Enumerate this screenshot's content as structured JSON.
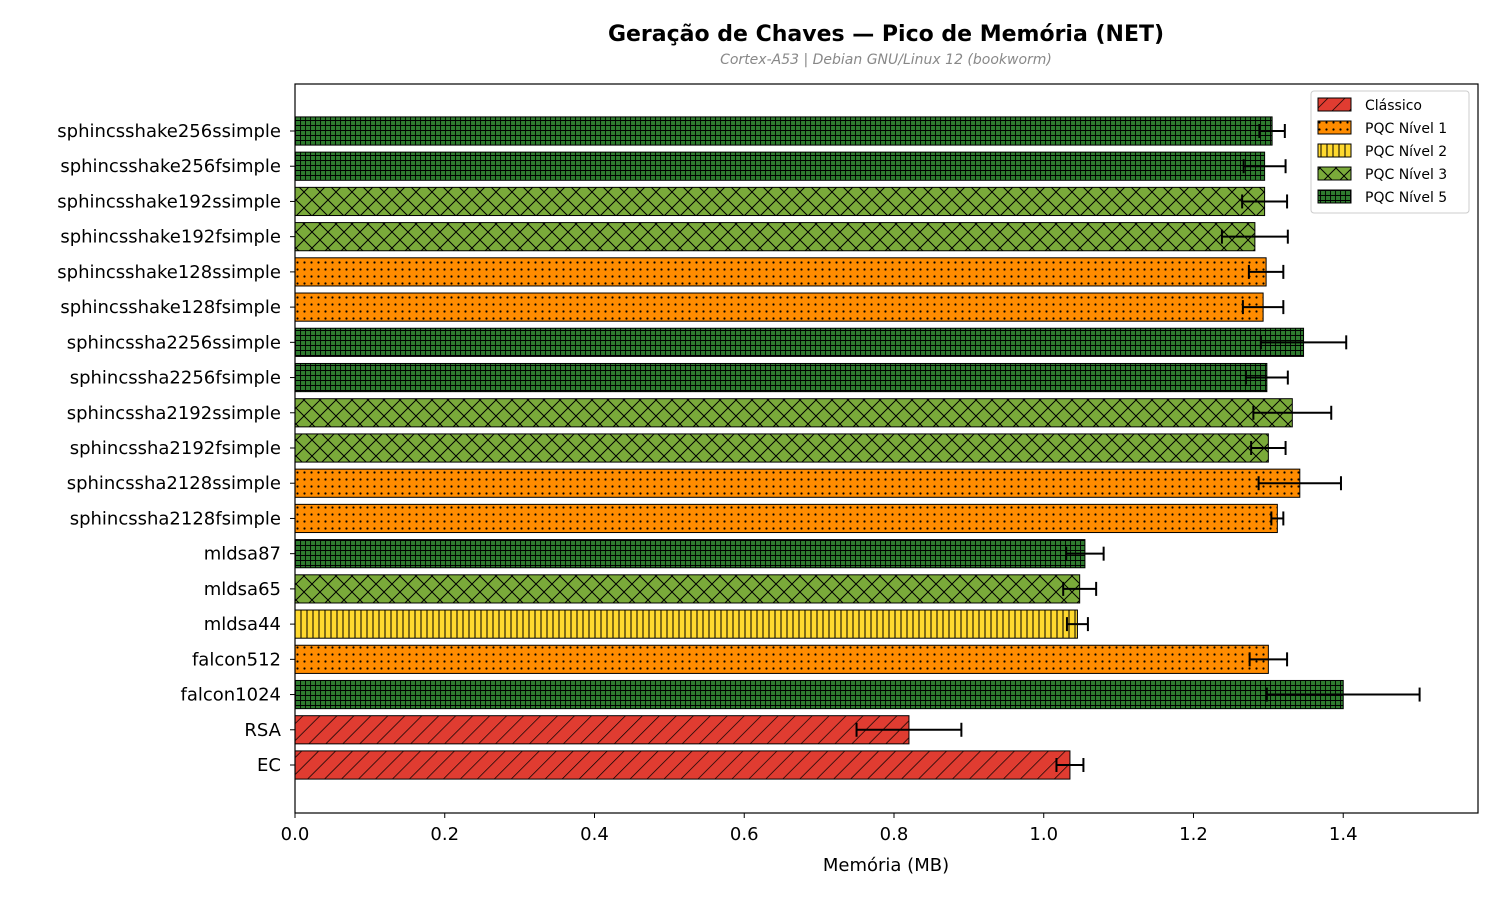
{
  "chart_data": {
    "type": "bar",
    "orientation": "horizontal",
    "title": "Geração de Chaves — Pico de Memória (NET)",
    "subtitle": "Cortex-A53 | Debian GNU/Linux 12 (bookworm)",
    "xlabel": "Memória (MB)",
    "ylabel": "",
    "xlim": [
      0,
      1.58
    ],
    "xticks": [
      "0.0",
      "0.2",
      "0.4",
      "0.6",
      "0.8",
      "1.0",
      "1.2",
      "1.4"
    ],
    "grid": false,
    "legend_position": "top-right",
    "categories": [
      "sphincsshake256ssimple",
      "sphincsshake256fsimple",
      "sphincsshake192ssimple",
      "sphincsshake192fsimple",
      "sphincsshake128ssimple",
      "sphincsshake128fsimple",
      "sphincssha2256ssimple",
      "sphincssha2256fsimple",
      "sphincssha2192ssimple",
      "sphincssha2192fsimple",
      "sphincssha2128ssimple",
      "sphincssha2128fsimple",
      "mldsa87",
      "mldsa65",
      "mldsa44",
      "falcon512",
      "falcon1024",
      "RSA",
      "EC"
    ],
    "values": [
      1.305,
      1.295,
      1.295,
      1.282,
      1.297,
      1.293,
      1.347,
      1.298,
      1.332,
      1.3,
      1.342,
      1.312,
      1.055,
      1.048,
      1.045,
      1.3,
      1.4,
      0.82,
      1.035
    ],
    "errors": [
      0.017,
      0.028,
      0.03,
      0.044,
      0.023,
      0.027,
      0.057,
      0.028,
      0.052,
      0.023,
      0.055,
      0.008,
      0.025,
      0.022,
      0.014,
      0.025,
      0.102,
      0.07,
      0.018
    ],
    "levels": [
      4,
      4,
      3,
      3,
      1,
      1,
      4,
      4,
      3,
      3,
      1,
      1,
      4,
      3,
      2,
      1,
      4,
      0,
      0
    ],
    "legend": [
      {
        "name": "Clássico",
        "color": "#e03c31",
        "pattern": "diagonal-hatch"
      },
      {
        "name": "PQC Nível 1",
        "color": "#ff8c00",
        "pattern": "dots"
      },
      {
        "name": "PQC Nível 2",
        "color": "#ffd92f",
        "pattern": "vertical-lines"
      },
      {
        "name": "PQC Nível 3",
        "color": "#7aaa3a",
        "pattern": "cross-hatch"
      },
      {
        "name": "PQC Nível 5",
        "color": "#2e7a2e",
        "pattern": "grid"
      }
    ]
  }
}
